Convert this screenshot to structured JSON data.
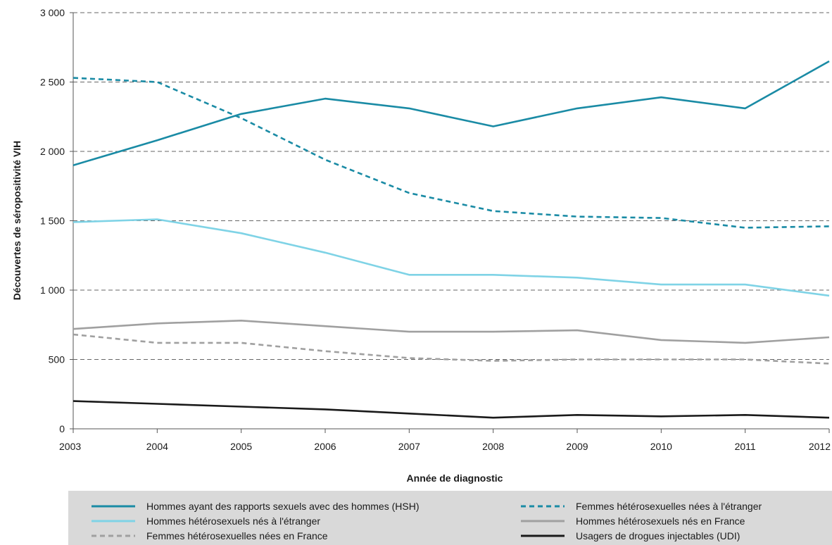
{
  "chart_data": {
    "type": "line",
    "title": "",
    "xlabel": "Année de diagnostic",
    "ylabel": "Découvertes de séropositivité VIH",
    "x": [
      2003,
      2004,
      2005,
      2006,
      2007,
      2008,
      2009,
      2010,
      2011,
      2012
    ],
    "x_tick_labels": [
      "2003",
      "2004",
      "2005",
      "2006",
      "2007",
      "2008",
      "2009",
      "2010",
      "2011",
      "2012"
    ],
    "ylim": [
      0,
      3000
    ],
    "y_ticks": [
      0,
      500,
      1000,
      1500,
      2000,
      2500,
      3000
    ],
    "y_tick_labels": [
      "0",
      "500",
      "1 000",
      "1 500",
      "2 000",
      "2 500",
      "3 000"
    ],
    "grid": "horizontal dashed",
    "legend_position": "bottom",
    "series": [
      {
        "name": "Hommes ayant des rapports sexuels avec des hommes (HSH)",
        "color": "#1a8ba5",
        "style": "solid",
        "values": [
          1900,
          2080,
          2270,
          2380,
          2310,
          2180,
          2310,
          2390,
          2310,
          2650
        ]
      },
      {
        "name": "Femmes hétérosexuelles nées à l'étranger",
        "color": "#1a8ba5",
        "style": "dashed",
        "values": [
          2530,
          2500,
          2240,
          1940,
          1700,
          1570,
          1530,
          1520,
          1450,
          1460
        ]
      },
      {
        "name": "Hommes hétérosexuels nés à l'étranger",
        "color": "#7fd3e6",
        "style": "solid",
        "values": [
          1490,
          1510,
          1410,
          1270,
          1110,
          1110,
          1090,
          1040,
          1040,
          960
        ]
      },
      {
        "name": "Hommes hétérosexuels nés en France",
        "color": "#a0a0a0",
        "style": "solid",
        "values": [
          720,
          760,
          780,
          740,
          700,
          700,
          710,
          640,
          620,
          660
        ]
      },
      {
        "name": "Femmes hétérosexuelles nées en France",
        "color": "#a0a0a0",
        "style": "dashed",
        "values": [
          680,
          620,
          620,
          560,
          510,
          490,
          500,
          500,
          500,
          470
        ]
      },
      {
        "name": "Usagers de drogues injectables (UDI)",
        "color": "#1a1a1a",
        "style": "solid",
        "values": [
          200,
          180,
          160,
          140,
          110,
          80,
          100,
          90,
          100,
          80
        ]
      }
    ]
  }
}
